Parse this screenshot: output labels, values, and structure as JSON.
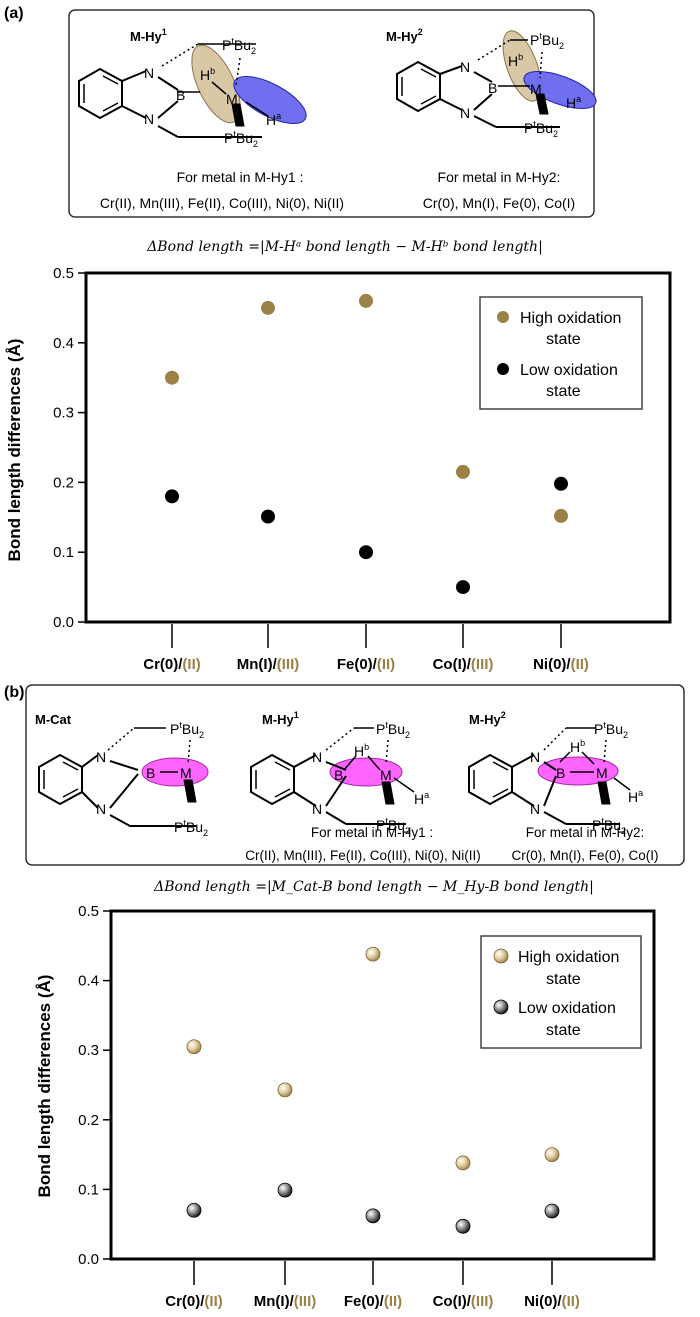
{
  "panel_a": {
    "letter": "(a)",
    "structures": {
      "hy1_title": "M-Hy",
      "hy1_sup": "1",
      "hy2_title": "M-Hy",
      "hy2_sup": "2"
    },
    "captions": {
      "hy1_line1": "For metal in M-Hy1 :",
      "hy1_line2": "Cr(II), Mn(III), Fe(II), Co(III), Ni(0), Ni(II)",
      "hy2_line1": "For metal in M-Hy2:",
      "hy2_line2": "Cr(0), Mn(I), Fe(0), Co(I)"
    },
    "formula": "ΔBond length =|M-Hᵃ bond length − M-Hᵇ bond length|"
  },
  "panel_b": {
    "letter": "(b)",
    "structures": {
      "cat_title": "M-Cat",
      "hy1_title": "M-Hy",
      "hy1_sup": "1",
      "hy2_title": "M-Hy",
      "hy2_sup": "2"
    },
    "captions": {
      "hy1_line1": "For metal in M-Hy1 :",
      "hy1_line2": "Cr(II), Mn(III), Fe(II), Co(III), Ni(0), Ni(II)",
      "hy2_line1": "For metal in M-Hy2:",
      "hy2_line2": "Cr(0), Mn(I), Fe(0), Co(I)"
    },
    "formula": "ΔBond length =|M_Cat-B bond length − M_Hy-B bond length|"
  },
  "atom_labels": {
    "N": "N",
    "B": "B",
    "M": "M",
    "H": "H",
    "Ha_sup": "a",
    "Hb_sup": "b",
    "P": "P",
    "P_sup": "t",
    "Bu": "Bu",
    "Bu_sub": "2"
  },
  "colors": {
    "high": "#9c8147",
    "low": "#000000",
    "tan_ellipse": "#d8c8a6",
    "blue_ellipse": "#6f6ff0",
    "pink_ellipse": "#ff66ff"
  },
  "chart_data": [
    {
      "type": "scatter",
      "title": "",
      "xlabel": "",
      "ylabel": "Bond length differences (Å)",
      "ylim": [
        0.0,
        0.5
      ],
      "yticks": [
        "0.0",
        "0.1",
        "0.2",
        "0.3",
        "0.4",
        "0.5"
      ],
      "categories": [
        {
          "low": "Cr(0)",
          "high": "(II)"
        },
        {
          "low": "Mn(I)",
          "high": "(III)"
        },
        {
          "low": "Fe(0)",
          "high": "(II)"
        },
        {
          "low": "Co(I)",
          "high": "(III)"
        },
        {
          "low": "Ni(0)",
          "high": "(II)"
        }
      ],
      "series": [
        {
          "name": "High oxidation state",
          "values": [
            0.35,
            0.45,
            0.46,
            0.215,
            0.152
          ]
        },
        {
          "name": "Low oxidation state",
          "values": [
            0.18,
            0.151,
            0.1,
            0.05,
            0.198
          ]
        }
      ],
      "legend": {
        "position": "top-right",
        "high_lines": [
          "High oxidation",
          "state"
        ],
        "low_lines": [
          "Low oxidation",
          "state"
        ]
      },
      "grid": false
    },
    {
      "type": "scatter",
      "title": "",
      "xlabel": "",
      "ylabel": "Bond length differences (Å)",
      "ylim": [
        0.0,
        0.5
      ],
      "yticks": [
        "0.0",
        "0.1",
        "0.2",
        "0.3",
        "0.4",
        "0.5"
      ],
      "categories": [
        {
          "low": "Cr(0)",
          "high": "(II)"
        },
        {
          "low": "Mn(I)",
          "high": "(III)"
        },
        {
          "low": "Fe(0)",
          "high": "(II)"
        },
        {
          "low": "Co(I)",
          "high": "(III)"
        },
        {
          "low": "Ni(0)",
          "high": "(II)"
        }
      ],
      "series": [
        {
          "name": "High oxidation state",
          "values": [
            0.305,
            0.243,
            0.438,
            0.138,
            0.15
          ]
        },
        {
          "name": "Low oxidation state",
          "values": [
            0.07,
            0.099,
            0.062,
            0.047,
            0.069
          ]
        }
      ],
      "legend": {
        "position": "top-right",
        "high_lines": [
          "High oxidation",
          "state"
        ],
        "low_lines": [
          "Low oxidation",
          "state"
        ]
      },
      "grid": false
    }
  ]
}
